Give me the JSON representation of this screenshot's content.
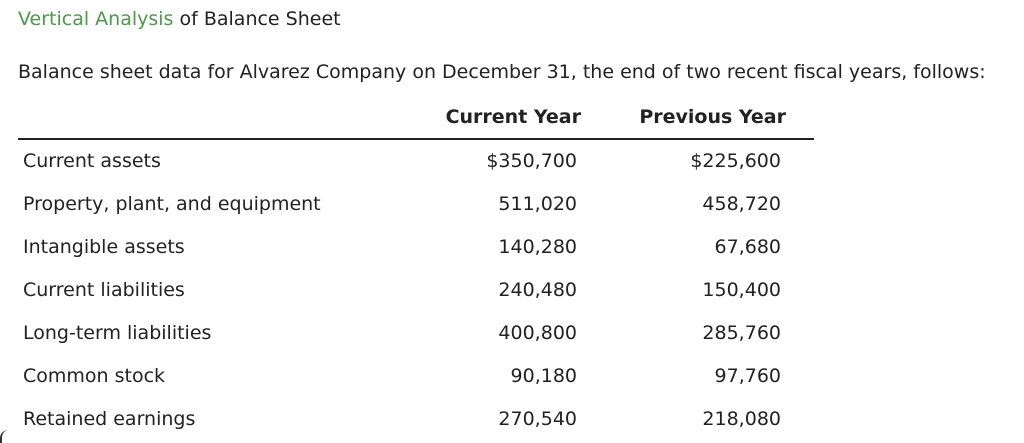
{
  "heading": {
    "accent": "Vertical Analysis",
    "rest": " of Balance Sheet"
  },
  "intro": "Balance sheet data for Alvarez Company on December 31, the end of two recent fiscal years, follows:",
  "columns": {
    "current": "Current Year",
    "previous": "Previous Year"
  },
  "rows": [
    {
      "label": "Current assets",
      "current": "$350,700",
      "previous": "$225,600"
    },
    {
      "label": "Property, plant, and equipment",
      "current": "511,020",
      "previous": "458,720"
    },
    {
      "label": "Intangible assets",
      "current": "140,280",
      "previous": "67,680"
    },
    {
      "label": "Current liabilities",
      "current": "240,480",
      "previous": "150,400"
    },
    {
      "label": "Long-term liabilities",
      "current": "400,800",
      "previous": "285,760"
    },
    {
      "label": "Common stock",
      "current": "90,180",
      "previous": "97,760"
    },
    {
      "label": "Retained earnings",
      "current": "270,540",
      "previous": "218,080"
    }
  ]
}
